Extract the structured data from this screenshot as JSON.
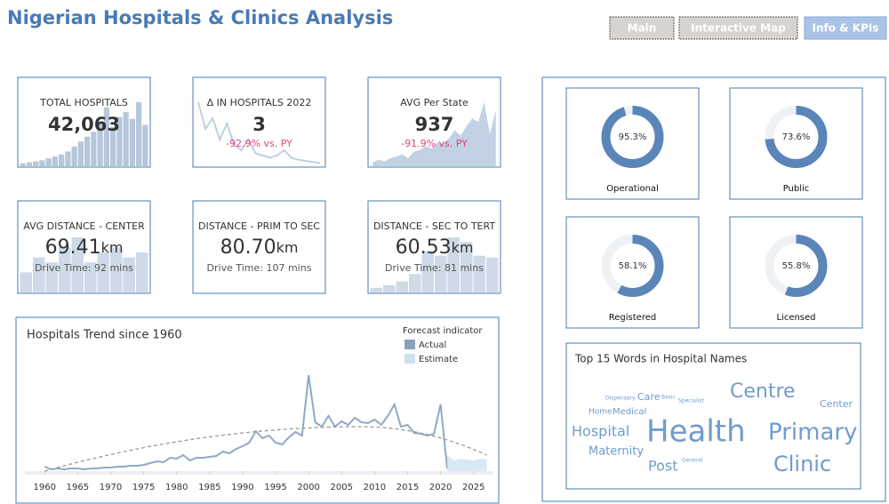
{
  "header": {
    "title": "Nigerian Hospitals & Clinics Analysis"
  },
  "nav": [
    "Main",
    "Interactive Map",
    "Info & KPIs"
  ],
  "kpis": [
    {
      "title": "TOTAL HOSPITALS",
      "value": "42,063",
      "spark_type": "bar",
      "spark": [
        3,
        4,
        5,
        6,
        8,
        10,
        12,
        15,
        20,
        25,
        30,
        35,
        45,
        60,
        40,
        50,
        55,
        48,
        65,
        42
      ]
    },
    {
      "title": "Δ IN HOSPITALS 2022",
      "value": "3",
      "change": "-92.9% vs. PY",
      "spark_type": "line",
      "spark": [
        60,
        35,
        45,
        25,
        40,
        20,
        15,
        25,
        12,
        10,
        8,
        10,
        15,
        8,
        6,
        5,
        4,
        3
      ]
    },
    {
      "title": "AVG Per State",
      "value": "937",
      "change": "-91.9% vs. PY",
      "spark_type": "area",
      "spark": [
        5,
        8,
        6,
        10,
        12,
        15,
        10,
        18,
        20,
        25,
        22,
        30,
        28,
        35,
        45,
        38,
        50,
        60,
        55,
        80,
        40,
        70
      ]
    },
    {
      "title": "AVG DISTANCE - CENTER",
      "value": "69.41",
      "unit": "km",
      "note": "Drive Time: 92 mins",
      "spark_type": "bar",
      "spark": [
        20,
        35,
        30,
        45,
        55,
        30,
        40,
        45,
        35,
        40
      ]
    },
    {
      "title": "DISTANCE - PRIM TO SEC",
      "value": "80.70",
      "unit": "km",
      "note": "Drive Time: 107 mins"
    },
    {
      "title": "DISTANCE - SEC TO TERT",
      "value": "60.53",
      "unit": "km",
      "note": "Drive Time: 81 mins",
      "spark_type": "bar",
      "spark": [
        5,
        8,
        12,
        20,
        45,
        40,
        60,
        55,
        40,
        38
      ]
    }
  ],
  "donuts": [
    {
      "label": "Operational",
      "value": 95.3,
      "value_label": "95.3%"
    },
    {
      "label": "Public",
      "value": 73.6,
      "value_label": "73.6%"
    },
    {
      "label": "Registered",
      "value": 58.1,
      "value_label": "58.1%"
    },
    {
      "label": "Licensed",
      "value": 55.8,
      "value_label": "55.8%"
    }
  ],
  "chart_data": {
    "type": "line",
    "title": "Hospitals Trend since 1960",
    "legend_title": "Forecast indicator",
    "x": [
      1960,
      1961,
      1962,
      1963,
      1964,
      1965,
      1966,
      1967,
      1968,
      1969,
      1970,
      1971,
      1972,
      1973,
      1974,
      1975,
      1976,
      1977,
      1978,
      1979,
      1980,
      1981,
      1982,
      1983,
      1984,
      1985,
      1986,
      1987,
      1988,
      1989,
      1990,
      1991,
      1992,
      1993,
      1994,
      1995,
      1996,
      1997,
      1998,
      1999,
      2000,
      2001,
      2002,
      2003,
      2004,
      2005,
      2006,
      2007,
      2008,
      2009,
      2010,
      2011,
      2012,
      2013,
      2014,
      2015,
      2016,
      2017,
      2018,
      2019,
      2020,
      2021,
      2022,
      2023,
      2024,
      2025,
      2026,
      2027
    ],
    "series": [
      {
        "name": "Actual",
        "color": "#8fa9c6",
        "values": [
          5,
          2,
          3,
          2,
          3,
          3,
          2,
          3,
          3,
          4,
          4,
          5,
          5,
          6,
          6,
          7,
          9,
          11,
          10,
          15,
          14,
          18,
          12,
          15,
          15,
          16,
          17,
          22,
          20,
          25,
          28,
          32,
          45,
          37,
          40,
          32,
          30,
          38,
          44,
          40,
          108,
          55,
          50,
          62,
          50,
          56,
          52,
          60,
          55,
          54,
          58,
          52,
          62,
          75,
          50,
          52,
          43,
          42,
          40,
          42,
          75,
          3,
          null,
          null,
          null,
          null,
          null,
          null
        ]
      },
      {
        "name": "Estimate",
        "color": "#cfe2f2",
        "values": [
          null,
          null,
          null,
          null,
          null,
          null,
          null,
          null,
          null,
          null,
          null,
          null,
          null,
          null,
          null,
          null,
          null,
          null,
          null,
          null,
          null,
          null,
          null,
          null,
          null,
          null,
          null,
          null,
          null,
          null,
          null,
          null,
          null,
          null,
          null,
          null,
          null,
          null,
          null,
          null,
          null,
          null,
          null,
          null,
          null,
          null,
          null,
          null,
          null,
          null,
          null,
          null,
          null,
          null,
          null,
          null,
          null,
          null,
          null,
          null,
          null,
          18,
          12,
          14,
          13,
          12,
          14,
          13
        ]
      },
      {
        "color": "#9a9a9a",
        "dashed": true,
        "values": [
          0,
          2.0,
          4.1,
          6.1,
          8.0,
          9.9,
          11.7,
          13.5,
          15.3,
          17.0,
          18.7,
          20.3,
          21.9,
          23.4,
          24.9,
          26.4,
          27.8,
          29.2,
          30.5,
          31.8,
          33.0,
          34.2,
          35.3,
          36.4,
          37.5,
          38.5,
          39.5,
          40.4,
          41.3,
          42.2,
          43.0,
          43.7,
          44.4,
          45.1,
          45.7,
          46.3,
          46.9,
          47.4,
          47.8,
          48.2,
          48.6,
          48.9,
          49.2,
          49.5,
          49.7,
          49.8,
          49.9,
          50.0,
          50,
          49.9,
          49.6,
          49.2,
          48.6,
          47.8,
          46.8,
          45.7,
          44.3,
          42.8,
          41.1,
          39.3,
          37.2,
          35.0,
          32.6,
          30.1,
          27.3,
          24.4,
          21.3,
          18.0
        ]
      }
    ],
    "xlim": [
      1957,
      2028
    ],
    "xticks": [
      1960,
      1965,
      1970,
      1975,
      1980,
      1985,
      1990,
      1995,
      2000,
      2005,
      2010,
      2015,
      2020,
      2025
    ],
    "ylim": [
      0,
      115
    ]
  },
  "words": {
    "title": "Top 15 Words in Hospital Names",
    "list": [
      "Health",
      "Primary",
      "Clinic",
      "Centre",
      "Hospital",
      "Maternity",
      "Post",
      "Center",
      "Care",
      "Medical",
      "Home",
      "Dispensary",
      "Basic",
      "Specialist",
      "General"
    ]
  }
}
